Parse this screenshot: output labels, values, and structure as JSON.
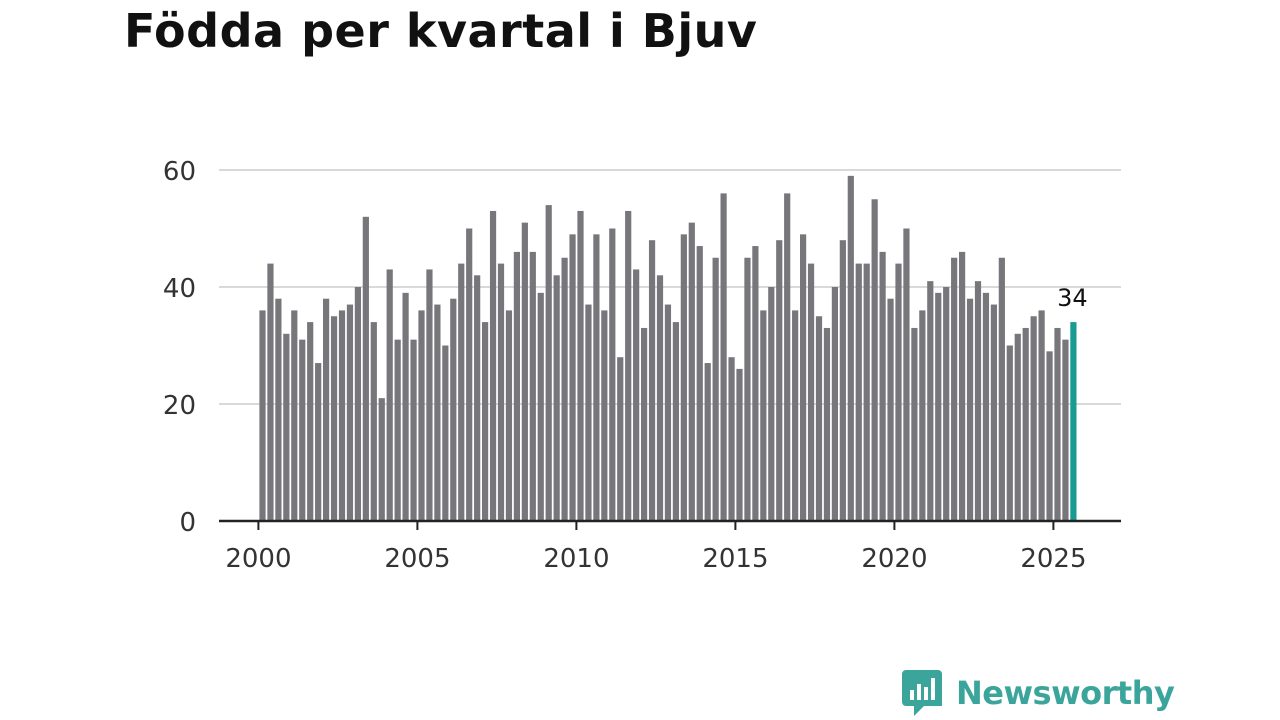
{
  "title": "Födda per kvartal i Bjuv",
  "brand": {
    "name": "Newsworthy",
    "icon": "newsworthy-logo-icon"
  },
  "colors": {
    "bar": "#77767b",
    "highlight": "#199b91",
    "grid": "#d9d9d9",
    "axis": "#222222"
  },
  "chart_data": {
    "type": "bar",
    "title": "Födda per kvartal i Bjuv",
    "xlabel": "",
    "ylabel": "",
    "ylim": [
      0,
      60
    ],
    "yticks": [
      0,
      20,
      40,
      60
    ],
    "xticks": [
      "2000",
      "2005",
      "2010",
      "2015",
      "2020",
      "2025"
    ],
    "start_year": 2000,
    "values": [
      36,
      44,
      38,
      32,
      36,
      31,
      34,
      27,
      38,
      35,
      36,
      37,
      40,
      52,
      34,
      21,
      43,
      31,
      39,
      31,
      36,
      43,
      37,
      30,
      38,
      44,
      50,
      42,
      34,
      53,
      44,
      36,
      46,
      51,
      46,
      39,
      54,
      42,
      45,
      49,
      53,
      37,
      49,
      36,
      50,
      28,
      53,
      43,
      33,
      48,
      42,
      37,
      34,
      49,
      51,
      47,
      27,
      45,
      56,
      28,
      26,
      45,
      47,
      36,
      40,
      48,
      56,
      36,
      49,
      44,
      35,
      33,
      40,
      48,
      59,
      44,
      44,
      55,
      46,
      38,
      44,
      50,
      33,
      36,
      41,
      39,
      40,
      45,
      46,
      38,
      41,
      39,
      37,
      45,
      30,
      32,
      33,
      35,
      36,
      29,
      33,
      31,
      34
    ],
    "highlight": {
      "index": 102,
      "label": "34"
    },
    "grid": true,
    "legend": "none"
  }
}
